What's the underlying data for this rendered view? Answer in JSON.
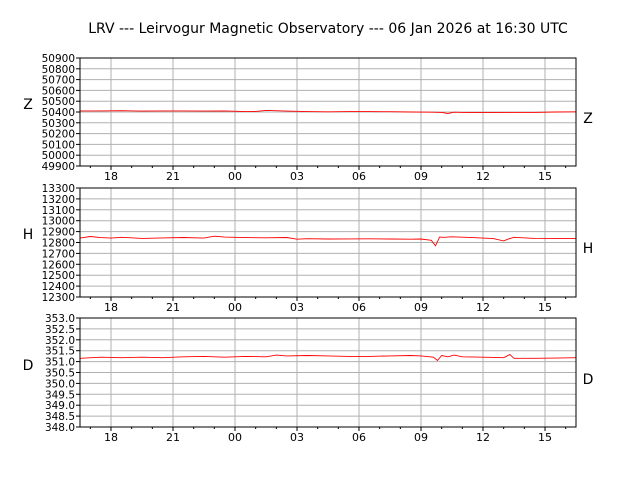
{
  "title": "LRV --- Leirvogur Magnetic Observatory --- 06 Jan 2026 at 16:30 UTC",
  "colors": {
    "trace": "#ff0000",
    "grid": "#b0b0b0",
    "frame": "#000000"
  },
  "chart_data": [
    {
      "type": "line",
      "component": "Z",
      "left_label": "Z",
      "right_label": "Z",
      "ylim": [
        49900,
        50900
      ],
      "yticks": [
        "50900",
        "50800",
        "50700",
        "50600",
        "50500",
        "50400",
        "50300",
        "50200",
        "50100",
        "50000",
        "49900"
      ],
      "xlim": [
        16.5,
        40.5
      ],
      "xtick_values": [
        18,
        21,
        24,
        27,
        30,
        33,
        36,
        39
      ],
      "xtick_labels": [
        "18",
        "21",
        "00",
        "03",
        "06",
        "09",
        "12",
        "15"
      ],
      "grid": true,
      "series": [
        {
          "name": "Z",
          "x": [
            16.5,
            17.5,
            18.5,
            19.5,
            20.5,
            21.5,
            22.5,
            23.5,
            24.5,
            25.0,
            25.5,
            26.0,
            26.5,
            27.5,
            28.5,
            29.5,
            30.5,
            31.5,
            32.5,
            33.5,
            34.0,
            34.3,
            34.6,
            35.0,
            35.5,
            36.5,
            37.5,
            38.5,
            39.5,
            40.5
          ],
          "y": [
            50410,
            50410,
            50412,
            50408,
            50410,
            50410,
            50408,
            50410,
            50404,
            50406,
            50415,
            50412,
            50408,
            50404,
            50402,
            50404,
            50404,
            50403,
            50400,
            50398,
            50396,
            50386,
            50398,
            50396,
            50394,
            50394,
            50396,
            50396,
            50400,
            50402
          ]
        }
      ]
    },
    {
      "type": "line",
      "component": "H",
      "left_label": "H",
      "right_label": "H",
      "ylim": [
        12300,
        13300
      ],
      "yticks": [
        "13300",
        "13200",
        "13100",
        "13000",
        "12900",
        "12800",
        "12700",
        "12600",
        "12500",
        "12400",
        "12300"
      ],
      "xlim": [
        16.5,
        40.5
      ],
      "xtick_values": [
        18,
        21,
        24,
        27,
        30,
        33,
        36,
        39
      ],
      "xtick_labels": [
        "18",
        "21",
        "00",
        "03",
        "06",
        "09",
        "12",
        "15"
      ],
      "grid": true,
      "series": [
        {
          "name": "H",
          "x": [
            16.5,
            17.0,
            17.5,
            18.0,
            18.5,
            19.5,
            20.5,
            21.5,
            22.5,
            23.0,
            23.5,
            24.5,
            25.5,
            26.5,
            27.0,
            27.5,
            28.5,
            29.5,
            30.5,
            31.5,
            32.5,
            33.0,
            33.5,
            33.7,
            33.9,
            34.1,
            34.5,
            35.5,
            36.5,
            37.0,
            37.2,
            37.5,
            38.5,
            39.5,
            40.5
          ],
          "y": [
            12840,
            12855,
            12845,
            12840,
            12848,
            12838,
            12842,
            12846,
            12840,
            12858,
            12850,
            12845,
            12843,
            12846,
            12830,
            12835,
            12832,
            12833,
            12834,
            12832,
            12830,
            12832,
            12820,
            12770,
            12850,
            12848,
            12852,
            12845,
            12836,
            12815,
            12830,
            12848,
            12838,
            12836,
            12838
          ]
        }
      ]
    },
    {
      "type": "line",
      "component": "D",
      "left_label": "D",
      "right_label": "D",
      "ylim": [
        348.0,
        353.0
      ],
      "yticks": [
        "353.0",
        "352.5",
        "352.0",
        "351.5",
        "351.0",
        "350.5",
        "350.0",
        "349.5",
        "349.0",
        "348.5",
        "348.0"
      ],
      "xlim": [
        16.5,
        40.5
      ],
      "xtick_values": [
        18,
        21,
        24,
        27,
        30,
        33,
        36,
        39
      ],
      "xtick_labels": [
        "18",
        "21",
        "00",
        "03",
        "06",
        "09",
        "12",
        "15"
      ],
      "grid": true,
      "series": [
        {
          "name": "D",
          "x": [
            16.5,
            17.5,
            18.5,
            19.5,
            20.5,
            21.5,
            22.5,
            23.5,
            24.5,
            25.5,
            26.0,
            26.5,
            27.5,
            28.5,
            29.5,
            30.5,
            31.5,
            32.5,
            33.0,
            33.6,
            33.8,
            34.0,
            34.3,
            34.6,
            35.0,
            36.0,
            37.0,
            37.3,
            37.5,
            38.5,
            39.5,
            40.5
          ],
          "y": [
            351.15,
            351.2,
            351.18,
            351.2,
            351.18,
            351.22,
            351.24,
            351.2,
            351.24,
            351.22,
            351.3,
            351.26,
            351.28,
            351.26,
            351.24,
            351.24,
            351.26,
            351.28,
            351.26,
            351.2,
            351.05,
            351.28,
            351.22,
            351.3,
            351.22,
            351.2,
            351.18,
            351.32,
            351.15,
            351.15,
            351.16,
            351.18
          ]
        }
      ]
    }
  ]
}
